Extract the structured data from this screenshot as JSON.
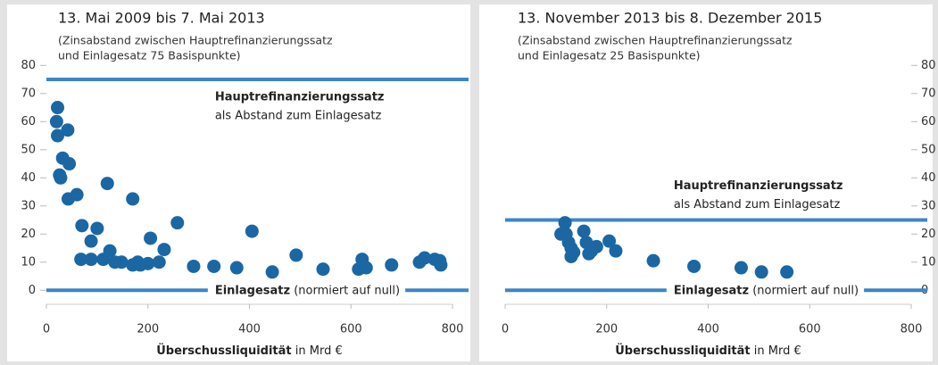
{
  "chart_data": [
    {
      "type": "scatter",
      "title": "13. Mai 2009 bis 7. Mai 2013",
      "subtitle": [
        "(Zinsabstand zwischen Hauptrefinanzierungssatz",
        "und Einlagesatz 75 Basispunkte)"
      ],
      "xlabel": "Überschussliquidität",
      "xlabel_unit": "in Mrd €",
      "xlim": [
        0,
        800
      ],
      "xticks": [
        0,
        200,
        400,
        600,
        800
      ],
      "ylim": [
        -5,
        82
      ],
      "yticks": [
        0,
        10,
        20,
        30,
        40,
        50,
        60,
        70,
        80
      ],
      "yaxis_side": "left",
      "reference_lines": [
        {
          "value": 75,
          "label": "Hauptrefinanzierungssatz",
          "sublabel": "als Abstand zum Einlagesatz",
          "color": "#3d86c6"
        },
        {
          "value": 0,
          "label": "Einlagesatz",
          "sublabel": "(normiert auf null)",
          "color": "#3d86c6"
        }
      ],
      "series": [
        {
          "color": "#1b67a3",
          "x": [
            22,
            20,
            22,
            26,
            28,
            32,
            42,
            45,
            43,
            60,
            70,
            68,
            88,
            88,
            100,
            112,
            120,
            125,
            135,
            148,
            170,
            170,
            180,
            185,
            200,
            205,
            222,
            232,
            258,
            290,
            330,
            375,
            405,
            445,
            492,
            545,
            615,
            622,
            630,
            680,
            735,
            745,
            765,
            775,
            777
          ],
          "values": [
            65,
            60,
            55,
            41,
            40,
            47,
            57,
            45,
            32.5,
            34,
            23,
            11,
            17.5,
            11,
            22,
            11,
            38,
            14,
            10,
            10,
            9,
            32.5,
            10,
            9,
            9.5,
            18.5,
            10,
            14.5,
            24,
            8.5,
            8.5,
            8,
            21,
            6.5,
            12.5,
            7.5,
            7.5,
            11,
            8,
            9,
            10,
            11.5,
            11,
            10.5,
            9
          ]
        }
      ]
    },
    {
      "type": "scatter",
      "title": "13. November 2013 bis 8. Dezember 2015",
      "subtitle": [
        "(Zinsabstand zwischen Hauptrefinanzierungssatz",
        "und Einlagesatz 25 Basispunkte)"
      ],
      "xlabel": "Überschussliquidität",
      "xlabel_unit": "in Mrd €",
      "xlim": [
        0,
        800
      ],
      "xticks": [
        0,
        200,
        400,
        600,
        800
      ],
      "ylim": [
        -5,
        82
      ],
      "yticks": [
        0,
        10,
        20,
        30,
        40,
        50,
        60,
        70,
        80
      ],
      "yaxis_side": "right",
      "reference_lines": [
        {
          "value": 25,
          "label": "Hauptrefinanzierungssatz",
          "sublabel": "als Abstand zum Einlagesatz",
          "color": "#3d86c6"
        },
        {
          "value": 0,
          "label": "Einlagesatz",
          "sublabel": "(normiert auf null)",
          "color": "#3d86c6"
        }
      ],
      "series": [
        {
          "color": "#1b67a3",
          "x": [
            110,
            118,
            120,
            125,
            130,
            130,
            135,
            155,
            160,
            165,
            170,
            180,
            205,
            218,
            292,
            372,
            465,
            505,
            555
          ],
          "values": [
            20,
            24,
            20,
            17,
            15,
            12,
            13.5,
            21,
            17,
            13,
            14,
            15.5,
            17.5,
            14,
            10.5,
            8.5,
            8,
            6.5,
            6.5
          ]
        }
      ]
    }
  ]
}
